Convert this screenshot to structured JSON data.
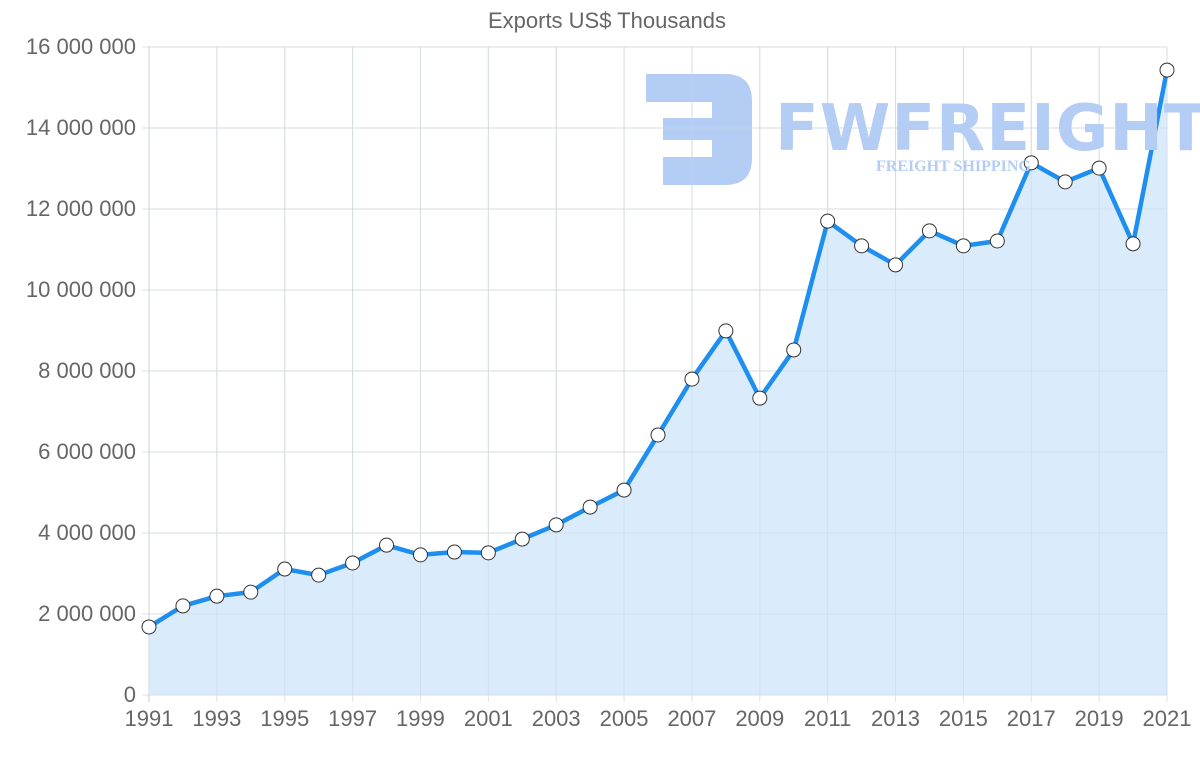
{
  "chart_data": {
    "type": "line",
    "title": "Exports US$ Thousands",
    "xlabel": "",
    "ylabel": "",
    "ylim": [
      0,
      16000000
    ],
    "grid": true,
    "legend": null,
    "filled_area": true,
    "x": [
      1991,
      1992,
      1993,
      1994,
      1995,
      1996,
      1997,
      1998,
      1999,
      2000,
      2001,
      2002,
      2003,
      2004,
      2005,
      2006,
      2007,
      2008,
      2009,
      2010,
      2011,
      2012,
      2013,
      2014,
      2015,
      2016,
      2017,
      2018,
      2019,
      2020,
      2021
    ],
    "series": [
      {
        "name": "Exports US$ Thousands",
        "values": [
          1680000,
          2200000,
          2440000,
          2540000,
          3110000,
          2960000,
          3260000,
          3700000,
          3460000,
          3530000,
          3510000,
          3850000,
          4200000,
          4640000,
          5060000,
          6420000,
          7800000,
          8990000,
          7330000,
          8520000,
          11700000,
          11090000,
          10620000,
          11460000,
          11090000,
          11210000,
          13140000,
          12670000,
          13010000,
          11140000,
          15430000
        ]
      }
    ],
    "x_tick_labels": [
      "1991",
      "1993",
      "1995",
      "1997",
      "1999",
      "2001",
      "2003",
      "2005",
      "2007",
      "2009",
      "2011",
      "2013",
      "2015",
      "2017",
      "2019",
      "2021"
    ],
    "y_tick_labels": [
      "0",
      "2 000 000",
      "4 000 000",
      "6 000 000",
      "8 000 000",
      "10 000 000",
      "12 000 000",
      "14 000 000",
      "16 000 000"
    ],
    "y_tick_values": [
      0,
      2000000,
      4000000,
      6000000,
      8000000,
      10000000,
      12000000,
      14000000,
      16000000
    ],
    "colors": {
      "line": "#1e8ef0",
      "fill": "#d8ebfb",
      "point_fill": "#ffffff",
      "point_border": "#333333",
      "grid": "#e2e2e2",
      "text": "#666666"
    }
  },
  "watermark": {
    "brand": "FWFREIGHT",
    "tagline": "FREIGHT SHIPPING",
    "color": "#b3cdf4"
  }
}
